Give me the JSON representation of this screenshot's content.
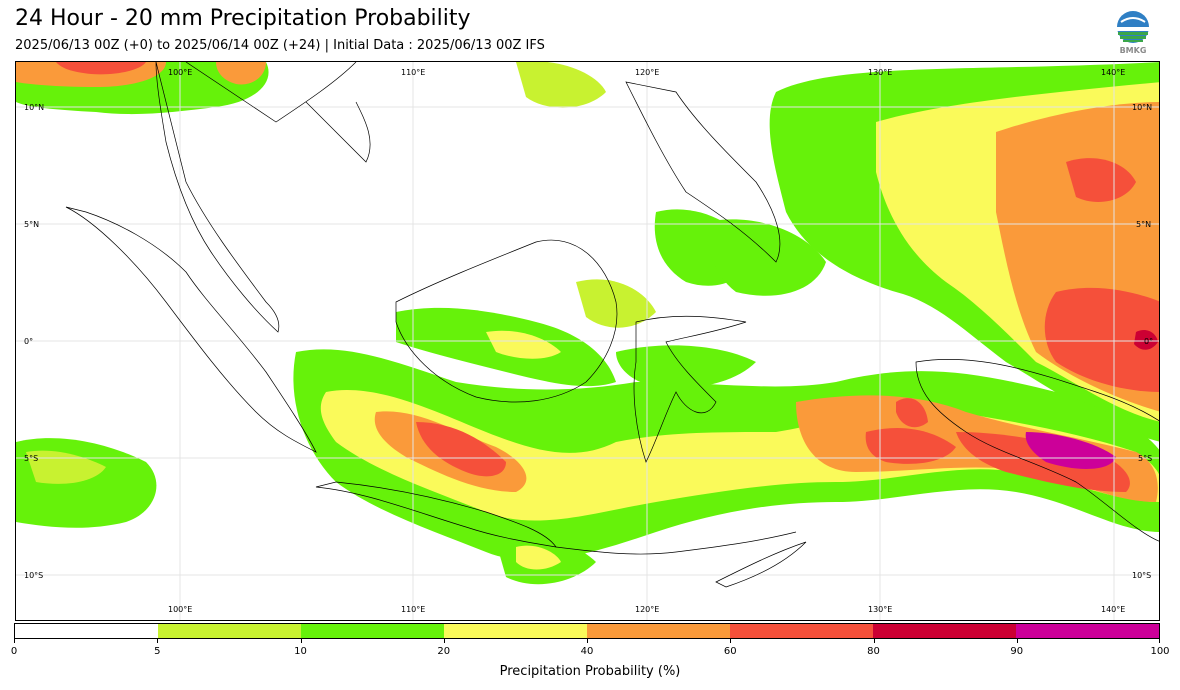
{
  "header": {
    "title": "24 Hour - 20 mm Precipitation Probability",
    "subtitle": "2025/06/13 00Z (+0) to 2025/06/14 00Z (+24) | Initial Data : 2025/06/13 00Z IFS"
  },
  "logo": {
    "text": "BMKG",
    "icon": "bmkg-logo-icon"
  },
  "map": {
    "lon_range": [
      93,
      142
    ],
    "lat_range": [
      -12,
      12
    ],
    "lon_labels": [
      "100°E",
      "110°E",
      "120°E",
      "130°E",
      "140°E"
    ],
    "lat_labels": [
      "10°N",
      "5°N",
      "0°",
      "5°S",
      "10°S"
    ]
  },
  "colorbar": {
    "title": "Precipitation Probability (%)",
    "ticks": [
      "0",
      "5",
      "10",
      "20",
      "40",
      "60",
      "80",
      "90",
      "100"
    ],
    "colors": [
      "#ffffff",
      "#c8f230",
      "#66f20a",
      "#fafa5a",
      "#fa9a3a",
      "#f5503a",
      "#cc0033",
      "#cc0099"
    ]
  }
}
